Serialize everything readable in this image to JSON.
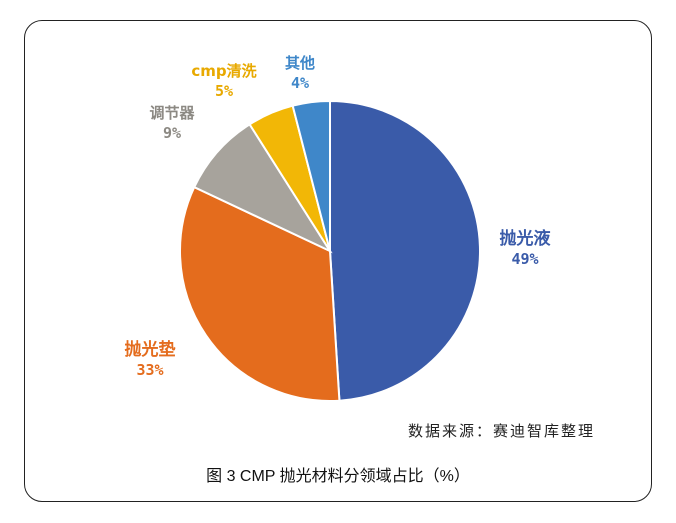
{
  "chart_data": {
    "type": "pie",
    "slices": [
      {
        "label": "抛光液",
        "value": 49,
        "value_text": "49%",
        "color": "#3a5ba9"
      },
      {
        "label": "抛光垫",
        "value": 33,
        "value_text": "33%",
        "color": "#e46c1d"
      },
      {
        "label": "调节器",
        "value": 9,
        "value_text": "9%",
        "color": "#a7a39c"
      },
      {
        "label": "cmp清洗",
        "value": 5,
        "value_text": "5%",
        "color": "#f2b706"
      },
      {
        "label": "其他",
        "value": 4,
        "value_text": "4%",
        "color": "#3f87c9"
      }
    ],
    "start_angle": "12 o'clock",
    "direction": "clockwise",
    "source_note": "数据来源：赛迪智库整理",
    "caption": "图 3  CMP 抛光材料分领域占比（%）"
  }
}
